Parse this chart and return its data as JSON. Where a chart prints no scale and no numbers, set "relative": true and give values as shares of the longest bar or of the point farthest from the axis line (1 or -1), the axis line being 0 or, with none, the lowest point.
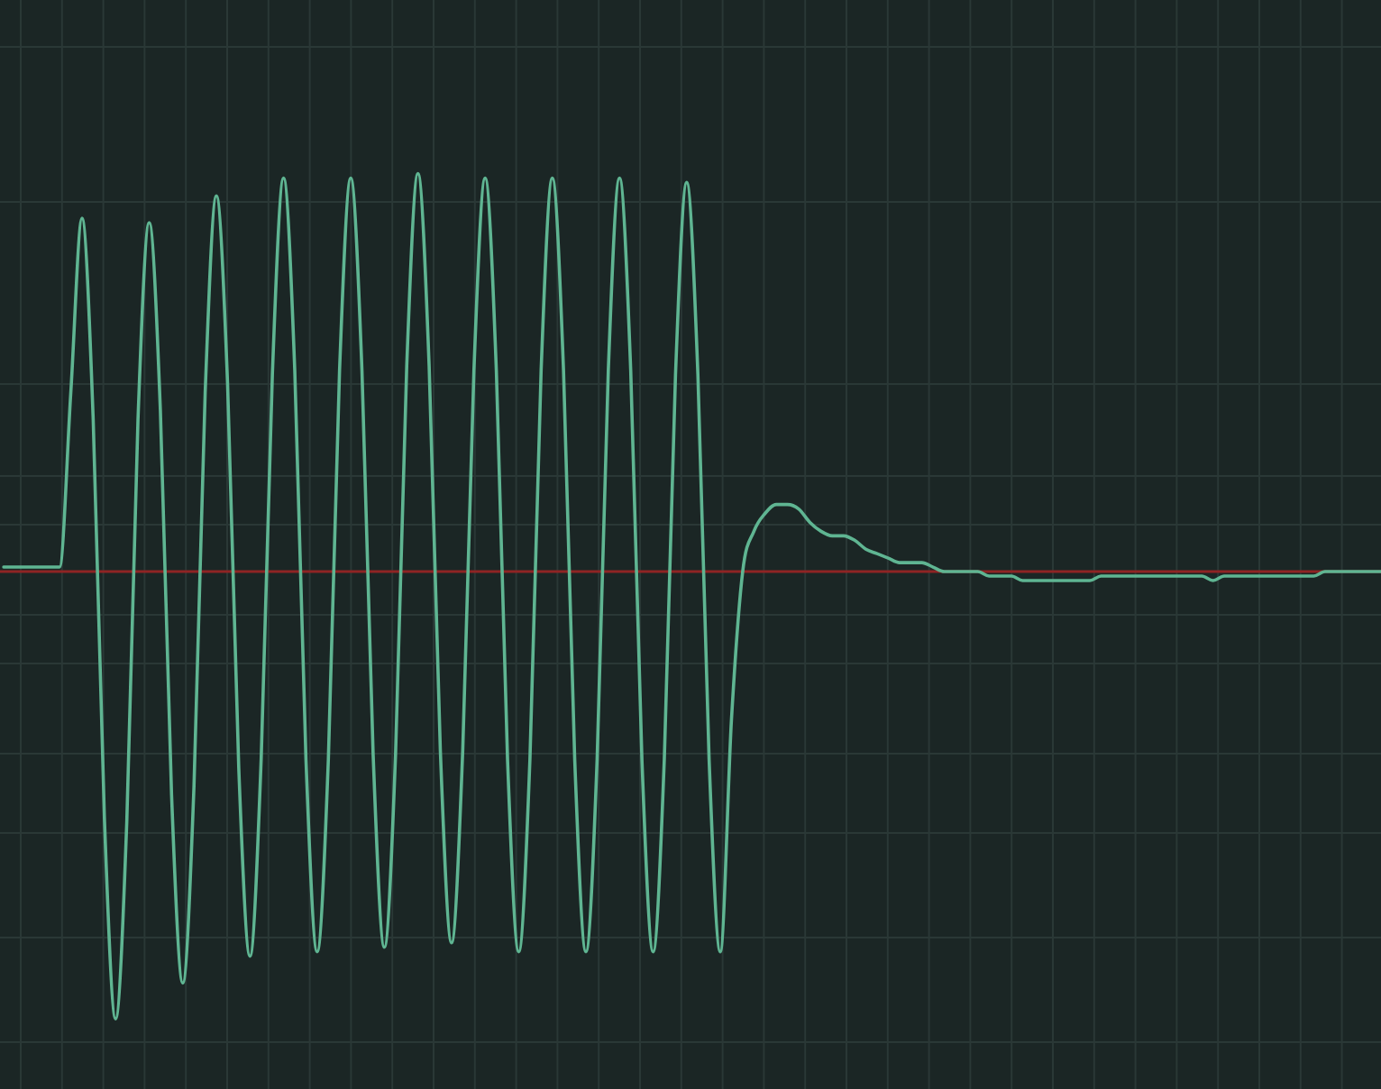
{
  "chart_data": {
    "type": "line",
    "relative": true,
    "grid": true,
    "categories": [
      null,
      null,
      null,
      null,
      null,
      null,
      null,
      null,
      null,
      null,
      null,
      null,
      null,
      null,
      null,
      null,
      null,
      null,
      null,
      null,
      null,
      null,
      null,
      null,
      null,
      null,
      null,
      null,
      null,
      null,
      null,
      null,
      null,
      null,
      null,
      null,
      null,
      null,
      null,
      null,
      null,
      null,
      null,
      null,
      null,
      null,
      null,
      null,
      null,
      null,
      null,
      null,
      null,
      null,
      null,
      null,
      null,
      null,
      null,
      null,
      null,
      null,
      null,
      null,
      null,
      null,
      null,
      null,
      null,
      null,
      null,
      null,
      null,
      null,
      null,
      null,
      null,
      null,
      null,
      null,
      null,
      null,
      null,
      null,
      null,
      null,
      null,
      null,
      null,
      null,
      null,
      null,
      null,
      null,
      null,
      null,
      null,
      null,
      null,
      null,
      null,
      null,
      null,
      null,
      null,
      null,
      null,
      null,
      null,
      null,
      null,
      null,
      null,
      null,
      null,
      null,
      null,
      null,
      null,
      null,
      null,
      null,
      null,
      null
    ],
    "series": [
      {
        "color": "#5fb592",
        "values": [
          0.01,
          0.01,
          0.01,
          0.01,
          0.01,
          0.01,
          0.4,
          0.79,
          0.34,
          -0.55,
          -1,
          -0.56,
          0.34,
          0.78,
          0.36,
          -0.5,
          -0.92,
          -0.48,
          0.4,
          0.84,
          0.42,
          -0.44,
          -0.86,
          -0.42,
          0.44,
          0.88,
          0.45,
          -0.42,
          -0.85,
          -0.42,
          0.45,
          0.88,
          0.45,
          -0.41,
          -0.84,
          -0.41,
          0.46,
          0.89,
          0.46,
          -0.4,
          -0.83,
          -0.4,
          0.45,
          0.88,
          0.45,
          -0.42,
          -0.85,
          -0.42,
          0.45,
          0.88,
          0.45,
          -0.42,
          -0.85,
          -0.42,
          0.45,
          0.88,
          0.45,
          -0.42,
          -0.85,
          -0.42,
          0.44,
          0.87,
          0.44,
          -0.42,
          -0.85,
          -0.33,
          0,
          0.09,
          0.13,
          0.15,
          0.15,
          0.14,
          0.11,
          0.09,
          0.08,
          0.08,
          0.07,
          0.05,
          0.04,
          0.03,
          0.02,
          0.02,
          0.02,
          0.01,
          0,
          0,
          0,
          0,
          -0.01,
          -0.01,
          -0.01,
          -0.02,
          -0.02,
          -0.02,
          -0.02,
          -0.02,
          -0.02,
          -0.02,
          -0.01,
          -0.01,
          -0.01,
          -0.01,
          -0.01,
          -0.01,
          -0.01,
          -0.01,
          -0.01,
          -0.01,
          -0.02,
          -0.01,
          -0.01,
          -0.01,
          -0.01,
          -0.01,
          -0.01,
          -0.01,
          -0.01,
          -0.01,
          0,
          0,
          0,
          0,
          0,
          0
        ]
      }
    ],
    "ref_lines": [
      {
        "axis": "y",
        "value": 0,
        "color": "#8e2424"
      }
    ]
  }
}
